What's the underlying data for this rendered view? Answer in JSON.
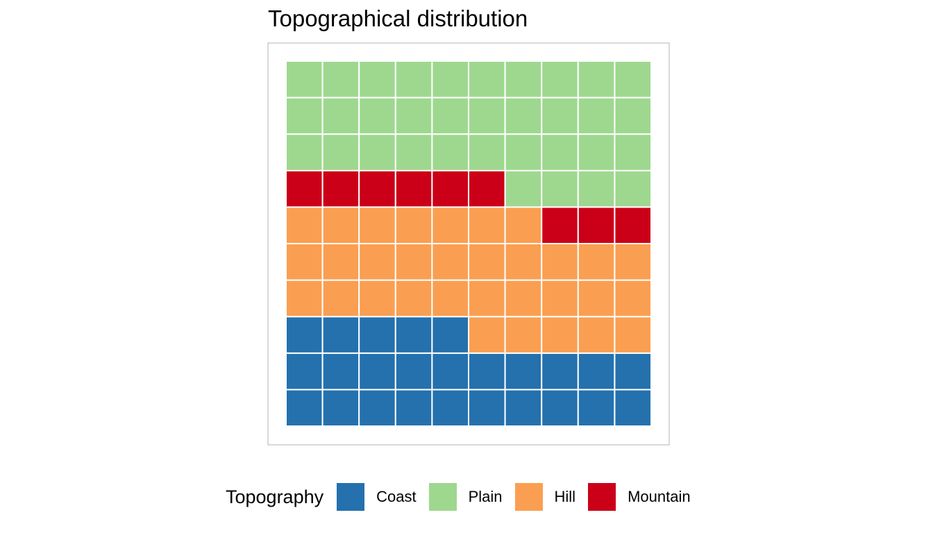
{
  "chart_data": {
    "type": "waffle",
    "title": "Topographical distribution",
    "rows": 10,
    "cols": 10,
    "fill_order": "row-wise from bottom-left, left to right",
    "categories": [
      {
        "name": "Coast",
        "value": 25,
        "color": "#2471AE"
      },
      {
        "name": "Hill",
        "value": 32,
        "color": "#FA9F51"
      },
      {
        "name": "Mountain",
        "value": 9,
        "color": "#CB0018"
      },
      {
        "name": "Plain",
        "value": 34,
        "color": "#9ED88F"
      }
    ],
    "legend": {
      "title": "Topography",
      "position": "bottom",
      "items": [
        {
          "label": "Coast",
          "color": "#2471AE"
        },
        {
          "label": "Plain",
          "color": "#9ED88F"
        },
        {
          "label": "Hill",
          "color": "#FA9F51"
        },
        {
          "label": "Mountain",
          "color": "#CB0018"
        }
      ]
    },
    "panel_border": true,
    "grid": false
  }
}
